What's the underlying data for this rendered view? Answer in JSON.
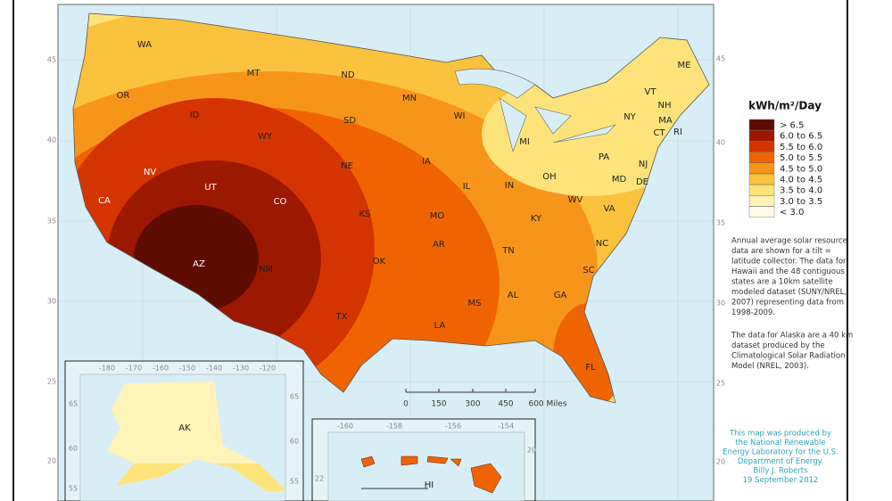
{
  "legend": {
    "title": "kWh/m²/Day",
    "items": [
      {
        "label": "> 6.5",
        "color": "#5e0c00"
      },
      {
        "label": "6.0 to 6.5",
        "color": "#9c1800"
      },
      {
        "label": "5.5 to 6.0",
        "color": "#d43400"
      },
      {
        "label": "5.0 to 5.5",
        "color": "#ef6400"
      },
      {
        "label": "4.5 to 5.0",
        "color": "#f7951a"
      },
      {
        "label": "4.0 to 4.5",
        "color": "#fbc23d"
      },
      {
        "label": "3.5 to 4.0",
        "color": "#fde37a"
      },
      {
        "label": "3.0 to 3.5",
        "color": "#fff3b8"
      },
      {
        "label": "< 3.0",
        "color": "#fffbe8"
      }
    ]
  },
  "states": [
    "WA",
    "OR",
    "ID",
    "MT",
    "WY",
    "ND",
    "SD",
    "NE",
    "MN",
    "WI",
    "MI",
    "IA",
    "IL",
    "IN",
    "OH",
    "PA",
    "NY",
    "VT",
    "NH",
    "ME",
    "MA",
    "CT",
    "RI",
    "NJ",
    "DE",
    "MD",
    "WV",
    "VA",
    "KY",
    "TN",
    "NC",
    "SC",
    "GA",
    "AL",
    "MS",
    "LA",
    "AR",
    "MO",
    "KS",
    "OK",
    "TX",
    "NM",
    "AZ",
    "NV",
    "CA",
    "UT",
    "CO",
    "FL",
    "AK",
    "HI"
  ],
  "lat_labels_left": [
    "45",
    "40",
    "35",
    "30",
    "25",
    "20"
  ],
  "lat_labels_right": [
    "45",
    "40",
    "35",
    "30",
    "25",
    "20"
  ],
  "alaska": {
    "lon_labels": [
      "-180",
      "-170",
      "-160",
      "-150",
      "-140",
      "-130",
      "-120"
    ],
    "lat_labels_left": [
      "65",
      "60",
      "55"
    ],
    "lat_labels_right": [
      "65",
      "60",
      "55"
    ]
  },
  "hawaii": {
    "lon_labels": [
      "-160",
      "-158",
      "-156",
      "-154"
    ],
    "lat_labels": [
      "22",
      "20"
    ]
  },
  "scale_labels": [
    "0",
    "150",
    "300",
    "450",
    "600 Miles"
  ],
  "notes": [
    [
      "Annual average solar resource",
      "data are shown for a tilt =",
      "latitude collector. The data for",
      "Hawaii and the 48 contiguous",
      "states are a 10km satellite",
      "modeled dataset (SUNY/NREL,",
      "2007) representing data from",
      "1998-2009."
    ],
    [
      "The data for Alaska are a 40 km",
      "dataset produced by the",
      "Climatological Solar Radiation",
      "Model (NREL, 2003)."
    ]
  ],
  "credit": [
    "This map was produced by",
    "the National Renewable",
    "Energy Laboratory for the U.S.",
    "Department of Energy.",
    "Billy J. Roberts",
    "19 September 2012"
  ]
}
